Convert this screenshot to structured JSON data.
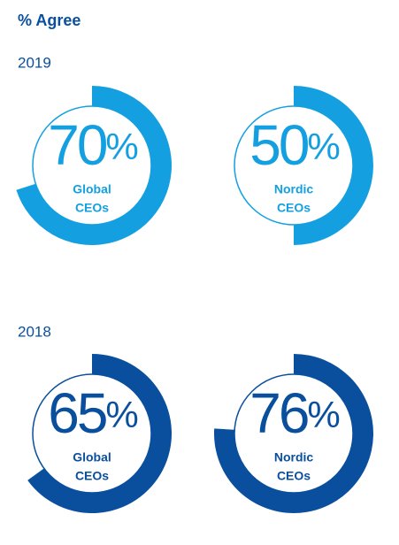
{
  "title": "% Agree",
  "sections": [
    {
      "heading": "2019",
      "chart_data": [
        {
          "type": "donut",
          "value": 70,
          "unit": "%",
          "label": [
            "Global",
            "CEOs"
          ],
          "color": "#14a0e0",
          "ylim": [
            0,
            100
          ]
        },
        {
          "type": "donut",
          "value": 50,
          "unit": "%",
          "label": [
            "Nordic",
            "CEOs"
          ],
          "color": "#14a0e0",
          "ylim": [
            0,
            100
          ]
        }
      ]
    },
    {
      "heading": "2018",
      "chart_data": [
        {
          "type": "donut",
          "value": 65,
          "unit": "%",
          "label": [
            "Global",
            "CEOs"
          ],
          "color": "#0a4f9e",
          "ylim": [
            0,
            100
          ]
        },
        {
          "type": "donut",
          "value": 76,
          "unit": "%",
          "label": [
            "Nordic",
            "CEOs"
          ],
          "color": "#0a4f9e",
          "ylim": [
            0,
            100
          ]
        }
      ]
    }
  ]
}
